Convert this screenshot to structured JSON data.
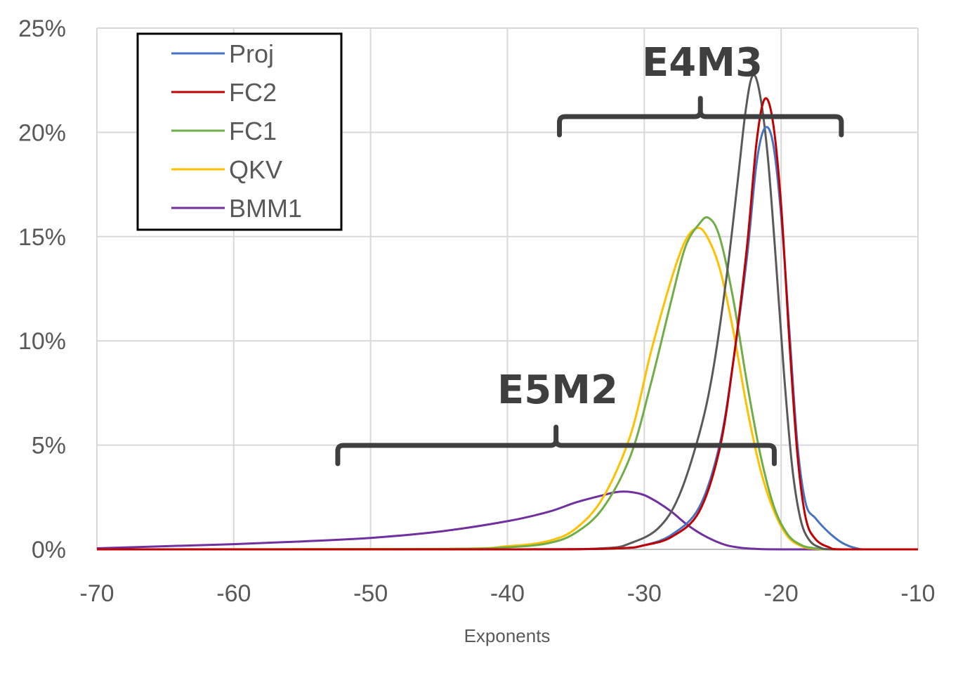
{
  "chart_data": {
    "type": "line",
    "title": "",
    "xlabel": "Exponents",
    "ylabel": "",
    "xlim": [
      -70,
      -10
    ],
    "ylim": [
      0,
      25
    ],
    "x_ticks": [
      -70,
      -60,
      -50,
      -40,
      -30,
      -20,
      -10
    ],
    "y_ticks": [
      0,
      5,
      10,
      15,
      20,
      25
    ],
    "x_tick_labels": [
      "-70",
      "-60",
      "-50",
      "-40",
      "-30",
      "-20",
      "-10"
    ],
    "y_tick_labels": [
      "0%",
      "5%",
      "10%",
      "15%",
      "20%",
      "25%"
    ],
    "grid": true,
    "legend_position": "top-left",
    "series": [
      {
        "name": "Proj",
        "color": "#4472C4",
        "points": [
          [
            -70,
            0
          ],
          [
            -40,
            0
          ],
          [
            -32,
            0.05
          ],
          [
            -30,
            0.2
          ],
          [
            -28,
            0.7
          ],
          [
            -26,
            2
          ],
          [
            -24.5,
            5
          ],
          [
            -23.5,
            9
          ],
          [
            -22.5,
            14
          ],
          [
            -21.8,
            18.5
          ],
          [
            -21.2,
            20.2
          ],
          [
            -20.6,
            19.5
          ],
          [
            -20,
            16
          ],
          [
            -19.4,
            10.5
          ],
          [
            -18.8,
            5
          ],
          [
            -18.2,
            2.2
          ],
          [
            -17.5,
            1.5
          ],
          [
            -16.5,
            0.8
          ],
          [
            -15.5,
            0.3
          ],
          [
            -14.5,
            0.05
          ],
          [
            -13.5,
            0
          ],
          [
            -10,
            0
          ]
        ]
      },
      {
        "name": "FC2",
        "color": "#C00000",
        "points": [
          [
            -70,
            0
          ],
          [
            -40,
            0
          ],
          [
            -32,
            0.05
          ],
          [
            -30,
            0.2
          ],
          [
            -28,
            0.6
          ],
          [
            -26,
            1.8
          ],
          [
            -24.5,
            4.8
          ],
          [
            -23.5,
            9
          ],
          [
            -22.5,
            14.5
          ],
          [
            -21.8,
            19.5
          ],
          [
            -21.2,
            21.6
          ],
          [
            -20.6,
            20.5
          ],
          [
            -20,
            16.5
          ],
          [
            -19.4,
            10
          ],
          [
            -18.8,
            4.5
          ],
          [
            -18.2,
            1.5
          ],
          [
            -17.5,
            0.5
          ],
          [
            -16.5,
            0.1
          ],
          [
            -15.5,
            0
          ],
          [
            -10,
            0
          ]
        ]
      },
      {
        "name": "FC1",
        "color": "#70AD47",
        "points": [
          [
            -70,
            0
          ],
          [
            -45,
            0.02
          ],
          [
            -40,
            0.1
          ],
          [
            -37,
            0.3
          ],
          [
            -35,
            0.8
          ],
          [
            -33,
            2
          ],
          [
            -31,
            4.5
          ],
          [
            -29.5,
            8
          ],
          [
            -28,
            12
          ],
          [
            -27,
            14.5
          ],
          [
            -26,
            15.6
          ],
          [
            -25.3,
            15.9
          ],
          [
            -24.5,
            15
          ],
          [
            -23.5,
            12
          ],
          [
            -22.5,
            8
          ],
          [
            -21.5,
            4.5
          ],
          [
            -20.5,
            2
          ],
          [
            -19.5,
            0.7
          ],
          [
            -18.5,
            0.2
          ],
          [
            -17.5,
            0.05
          ],
          [
            -16,
            0
          ],
          [
            -10,
            0
          ]
        ]
      },
      {
        "name": "QKV",
        "color": "#FFC000",
        "points": [
          [
            -70,
            0
          ],
          [
            -45,
            0.02
          ],
          [
            -40,
            0.15
          ],
          [
            -37,
            0.4
          ],
          [
            -35,
            1
          ],
          [
            -33,
            2.5
          ],
          [
            -31,
            5.5
          ],
          [
            -29.5,
            9.5
          ],
          [
            -28,
            13
          ],
          [
            -27,
            14.8
          ],
          [
            -26.2,
            15.4
          ],
          [
            -25.5,
            15.1
          ],
          [
            -24.5,
            13.5
          ],
          [
            -23.5,
            10.5
          ],
          [
            -22.5,
            6.8
          ],
          [
            -21.5,
            3.8
          ],
          [
            -20.5,
            1.8
          ],
          [
            -19.5,
            0.6
          ],
          [
            -18.5,
            0.15
          ],
          [
            -17.5,
            0.03
          ],
          [
            -16,
            0
          ],
          [
            -10,
            0
          ]
        ]
      },
      {
        "name": "BMM1",
        "color": "#7030A0",
        "points": [
          [
            -70,
            0.05
          ],
          [
            -65,
            0.15
          ],
          [
            -60,
            0.25
          ],
          [
            -55,
            0.38
          ],
          [
            -50,
            0.55
          ],
          [
            -45,
            0.85
          ],
          [
            -40,
            1.35
          ],
          [
            -37,
            1.8
          ],
          [
            -35,
            2.25
          ],
          [
            -33,
            2.6
          ],
          [
            -32,
            2.75
          ],
          [
            -31,
            2.75
          ],
          [
            -30,
            2.6
          ],
          [
            -29,
            2.25
          ],
          [
            -28,
            1.8
          ],
          [
            -27,
            1.25
          ],
          [
            -26,
            0.8
          ],
          [
            -25,
            0.45
          ],
          [
            -24,
            0.2
          ],
          [
            -23,
            0.08
          ],
          [
            -22,
            0.03
          ],
          [
            -20,
            0
          ],
          [
            -10,
            0
          ]
        ]
      },
      {
        "name": "",
        "color": "#595959",
        "points": [
          [
            -70,
            0
          ],
          [
            -40,
            0
          ],
          [
            -33,
            0.05
          ],
          [
            -31,
            0.3
          ],
          [
            -29,
            1
          ],
          [
            -27.5,
            2.5
          ],
          [
            -26,
            5.5
          ],
          [
            -25,
            8.5
          ],
          [
            -24,
            13
          ],
          [
            -23.2,
            17.5
          ],
          [
            -22.6,
            21
          ],
          [
            -22.1,
            22.7
          ],
          [
            -21.6,
            22
          ],
          [
            -21,
            19
          ],
          [
            -20.4,
            14
          ],
          [
            -19.8,
            8.5
          ],
          [
            -19.2,
            4
          ],
          [
            -18.6,
            1.5
          ],
          [
            -18,
            0.5
          ],
          [
            -17.2,
            0.1
          ],
          [
            -16,
            0
          ],
          [
            -10,
            0
          ]
        ]
      }
    ],
    "annotations": [
      {
        "text": "E4M3",
        "range": [
          -36.2,
          -15.6
        ]
      },
      {
        "text": "E5M2",
        "range": [
          -52.4,
          -20.5
        ]
      }
    ]
  }
}
